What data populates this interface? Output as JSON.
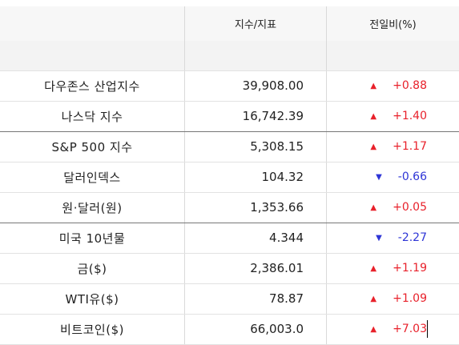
{
  "header": {
    "col_index": "지수/지표",
    "col_change": "전일비(%)"
  },
  "rows": [
    {
      "name": "다우존스 산업지수",
      "value": "39,908.00",
      "dir": "up",
      "change": "+0.88"
    },
    {
      "name": "나스닥 지수",
      "value": "16,742.39",
      "dir": "up",
      "change": "+1.40"
    },
    {
      "name": "S&P 500 지수",
      "value": "5,308.15",
      "dir": "up",
      "change": "+1.17"
    },
    {
      "name": "달러인덱스",
      "value": "104.32",
      "dir": "down",
      "change": "-0.66"
    },
    {
      "name": "원·달러(원)",
      "value": "1,353.66",
      "dir": "up",
      "change": "+0.05"
    },
    {
      "name": "미국 10년물",
      "value": "4.344",
      "dir": "down",
      "change": "-2.27"
    },
    {
      "name": "금($)",
      "value": "2,386.01",
      "dir": "up",
      "change": "+1.19"
    },
    {
      "name": "WTI유($)",
      "value": "78.87",
      "dir": "up",
      "change": "+1.09"
    },
    {
      "name": "비트코인($)",
      "value": "66,003.0",
      "dir": "up",
      "change": "+7.03"
    }
  ],
  "icons": {
    "up": "▲",
    "down": "▼"
  },
  "colors": {
    "up": "#e8212b",
    "down": "#2e35d6"
  }
}
